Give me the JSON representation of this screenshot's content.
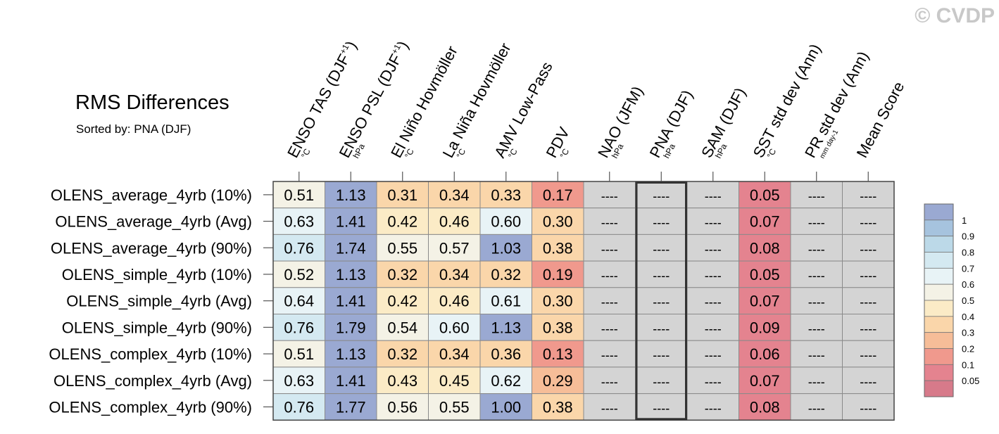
{
  "copyright": "© CVDP",
  "chart_data": {
    "type": "heatmap",
    "title": "RMS Differences",
    "subtitle": "Sorted by: PNA (DJF)",
    "columns": [
      {
        "label": "ENSO TAS (DJF+1)",
        "main": "ENSO TAS (DJF",
        "sup": "+1",
        "close": ")",
        "unit": "°C"
      },
      {
        "label": "ENSO PSL (DJF+1)",
        "main": "ENSO PSL (DJF",
        "sup": "+1",
        "close": ")",
        "unit": "hPa"
      },
      {
        "label": "El Niño Hovmöller",
        "main": "El Niño Hovmöller",
        "sup": "",
        "close": "",
        "unit": "°C"
      },
      {
        "label": "La Niña Hovmöller",
        "main": "La Niña Hovmöller",
        "sup": "",
        "close": "",
        "unit": "°C"
      },
      {
        "label": "AMV Low-Pass",
        "main": "AMV Low-Pass",
        "sup": "",
        "close": "",
        "unit": "°C"
      },
      {
        "label": "PDV",
        "main": "PDV",
        "sup": "",
        "close": "",
        "unit": "°C"
      },
      {
        "label": "NAO (JFM)",
        "main": "NAO (JFM)",
        "sup": "",
        "close": "",
        "unit": "hPa"
      },
      {
        "label": "PNA (DJF)",
        "main": "PNA (DJF)",
        "sup": "",
        "close": "",
        "unit": "hPa"
      },
      {
        "label": "SAM (DJF)",
        "main": "SAM (DJF)",
        "sup": "",
        "close": "",
        "unit": "hPa"
      },
      {
        "label": "SST std dev (Ann)",
        "main": "SST std dev (Ann)",
        "sup": "",
        "close": "",
        "unit": "°C"
      },
      {
        "label": "PR std dev (Ann)",
        "main": "PR std dev (Ann)",
        "sup": "",
        "close": "",
        "unit": "mm day-1"
      },
      {
        "label": "Mean Score",
        "main": "Mean Score",
        "sup": "",
        "close": "",
        "unit": ""
      }
    ],
    "rows": [
      {
        "label": "OLENS_average_4yrb (10%)",
        "values": [
          "0.51",
          "1.13",
          "0.31",
          "0.34",
          "0.33",
          "0.17",
          "----",
          "----",
          "----",
          "0.05",
          "----",
          "----"
        ]
      },
      {
        "label": "OLENS_average_4yrb (Avg)",
        "values": [
          "0.63",
          "1.41",
          "0.42",
          "0.46",
          "0.60",
          "0.30",
          "----",
          "----",
          "----",
          "0.07",
          "----",
          "----"
        ]
      },
      {
        "label": "OLENS_average_4yrb (90%)",
        "values": [
          "0.76",
          "1.74",
          "0.55",
          "0.57",
          "1.03",
          "0.38",
          "----",
          "----",
          "----",
          "0.08",
          "----",
          "----"
        ]
      },
      {
        "label": "OLENS_simple_4yrb (10%)",
        "values": [
          "0.52",
          "1.13",
          "0.32",
          "0.34",
          "0.32",
          "0.19",
          "----",
          "----",
          "----",
          "0.05",
          "----",
          "----"
        ]
      },
      {
        "label": "OLENS_simple_4yrb (Avg)",
        "values": [
          "0.64",
          "1.41",
          "0.42",
          "0.46",
          "0.61",
          "0.30",
          "----",
          "----",
          "----",
          "0.07",
          "----",
          "----"
        ]
      },
      {
        "label": "OLENS_simple_4yrb (90%)",
        "values": [
          "0.76",
          "1.79",
          "0.54",
          "0.60",
          "1.13",
          "0.38",
          "----",
          "----",
          "----",
          "0.09",
          "----",
          "----"
        ]
      },
      {
        "label": "OLENS_complex_4yrb (10%)",
        "values": [
          "0.51",
          "1.13",
          "0.32",
          "0.34",
          "0.36",
          "0.13",
          "----",
          "----",
          "----",
          "0.06",
          "----",
          "----"
        ]
      },
      {
        "label": "OLENS_complex_4yrb (Avg)",
        "values": [
          "0.63",
          "1.41",
          "0.43",
          "0.45",
          "0.62",
          "0.29",
          "----",
          "----",
          "----",
          "0.07",
          "----",
          "----"
        ]
      },
      {
        "label": "OLENS_complex_4yrb (90%)",
        "values": [
          "0.76",
          "1.77",
          "0.56",
          "0.55",
          "1.00",
          "0.38",
          "----",
          "----",
          "----",
          "0.08",
          "----",
          "----"
        ]
      }
    ],
    "highlight_column": "PNA (DJF)",
    "missing_label": "----",
    "missing_color": "#d4d4d4",
    "colorbar": {
      "labels": [
        "1",
        "0.9",
        "0.8",
        "0.7",
        "0.6",
        "0.5",
        "0.4",
        "0.3",
        "0.2",
        "0.1",
        "0.05"
      ],
      "colors": [
        "#9aa9d2",
        "#a6c3de",
        "#bcd9e8",
        "#d4e9f1",
        "#e8f3f6",
        "#f4f2e6",
        "#fbebc6",
        "#fad6aa",
        "#f6bd98",
        "#f0998d",
        "#e4838f",
        "#d77a8a"
      ]
    }
  }
}
